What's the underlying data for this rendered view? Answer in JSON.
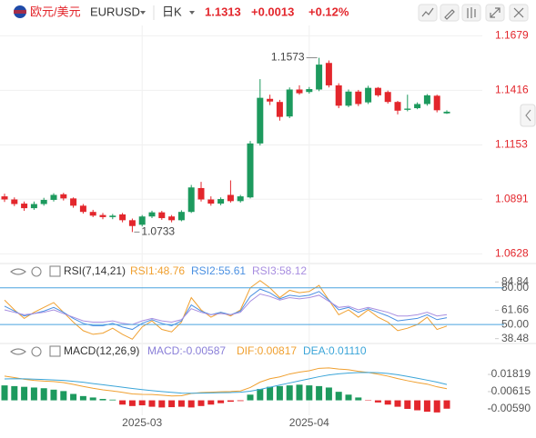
{
  "header": {
    "pair_name": "欧元/美元",
    "symbol": "EURUSD",
    "period": "日K",
    "price": "1.1313",
    "change": "+0.0013",
    "change_pct": "+0.12%"
  },
  "chart_data": [
    {
      "type": "candlestick",
      "categories": [
        null,
        null,
        null,
        null,
        null,
        null,
        null,
        null,
        null,
        null,
        null,
        null,
        null,
        null,
        "2025-03",
        null,
        null,
        null,
        null,
        null,
        null,
        null,
        null,
        null,
        null,
        null,
        null,
        null,
        null,
        null,
        null,
        "2025-04",
        null,
        null,
        null,
        null,
        null,
        null,
        null,
        null,
        null,
        null,
        null,
        null,
        null,
        null
      ],
      "open": [
        1.0905,
        1.089,
        1.087,
        1.0848,
        1.0868,
        1.0888,
        1.0915,
        1.0895,
        1.086,
        1.083,
        1.0815,
        1.0805,
        1.0818,
        1.079,
        1.0768,
        1.0808,
        1.0828,
        1.0808,
        1.079,
        1.083,
        1.0945,
        1.089,
        1.087,
        1.0912,
        1.0882,
        1.09,
        1.116,
        1.1375,
        1.136,
        1.129,
        1.142,
        1.1408,
        1.142,
        1.1548,
        1.144,
        1.1342,
        1.141,
        1.1358,
        1.1428,
        1.1408,
        1.136,
        1.1322,
        1.133,
        1.135,
        1.139,
        1.1305
      ],
      "high": [
        1.0918,
        1.09,
        1.088,
        1.088,
        1.0898,
        1.092,
        1.0922,
        1.09,
        1.0868,
        1.084,
        1.0825,
        1.082,
        1.0825,
        1.0798,
        1.0815,
        1.0836,
        1.0835,
        1.0815,
        1.0838,
        1.096,
        1.0975,
        1.0905,
        1.09,
        1.0982,
        1.0912,
        1.1172,
        1.147,
        1.1395,
        1.137,
        1.143,
        1.144,
        1.1432,
        1.1573,
        1.156,
        1.145,
        1.142,
        1.1418,
        1.1438,
        1.1432,
        1.1415,
        1.1365,
        1.1395,
        1.1358,
        1.1398,
        1.1395,
        1.132
      ],
      "low": [
        1.0878,
        1.0858,
        1.0835,
        1.084,
        1.086,
        1.088,
        1.0885,
        1.085,
        1.0822,
        1.0805,
        1.0795,
        1.0795,
        1.078,
        1.0733,
        1.076,
        1.08,
        1.0792,
        1.078,
        1.0785,
        1.0825,
        1.088,
        1.086,
        1.0862,
        1.0875,
        1.0875,
        1.0895,
        1.115,
        1.1345,
        1.127,
        1.1282,
        1.1395,
        1.14,
        1.1412,
        1.143,
        1.133,
        1.1335,
        1.134,
        1.135,
        1.1385,
        1.1352,
        1.13,
        1.1315,
        1.1325,
        1.1342,
        1.131,
        1.1302
      ],
      "close": [
        1.089,
        1.0868,
        1.0848,
        1.0868,
        1.0888,
        1.0912,
        1.0895,
        1.086,
        1.083,
        1.0812,
        1.0805,
        1.0812,
        1.079,
        1.0762,
        1.0808,
        1.0828,
        1.08,
        1.079,
        1.083,
        1.0948,
        1.089,
        1.087,
        1.0892,
        1.0882,
        1.0905,
        1.116,
        1.138,
        1.1362,
        1.1288,
        1.142,
        1.1402,
        1.1422,
        1.154,
        1.144,
        1.1342,
        1.141,
        1.135,
        1.1428,
        1.1392,
        1.136,
        1.1318,
        1.1328,
        1.135,
        1.1392,
        1.132,
        1.1313
      ],
      "up_color": "#1d9a5e",
      "down_color": "#e3262c",
      "ylim": [
        1.059,
        1.172
      ],
      "yticks": [
        1.0628,
        1.0891,
        1.1153,
        1.1416,
        1.1679
      ],
      "grid": true,
      "annotations": [
        {
          "label": "1.1573",
          "value": 1.1573
        },
        {
          "label": "1.0733",
          "value": 1.0733
        }
      ]
    },
    {
      "type": "line",
      "title": "RSI(7,14,21)",
      "series": [
        {
          "name": "RSI1:48.76",
          "color": "#f0a030",
          "values": [
            70,
            62,
            55,
            60,
            64,
            68,
            60,
            52,
            45,
            42,
            43,
            47,
            42,
            38,
            48,
            53,
            46,
            44,
            52,
            72,
            62,
            56,
            60,
            57,
            62,
            80,
            86,
            80,
            72,
            78,
            76,
            77,
            82,
            70,
            58,
            62,
            56,
            62,
            56,
            52,
            45,
            47,
            50,
            56,
            46,
            48.76
          ]
        },
        {
          "name": "RSI2:55.61",
          "color": "#4a90e2",
          "values": [
            65,
            61,
            57,
            59,
            61,
            64,
            60,
            55,
            51,
            49,
            49,
            51,
            48,
            46,
            51,
            54,
            51,
            49,
            53,
            66,
            61,
            58,
            60,
            58,
            61,
            73,
            79,
            76,
            71,
            74,
            73,
            74,
            77,
            70,
            62,
            64,
            60,
            63,
            60,
            57,
            53,
            54,
            55,
            58,
            54,
            55.61
          ]
        },
        {
          "name": "RSI3:58.12",
          "color": "#a88ee0",
          "values": [
            62,
            60,
            58,
            59,
            60,
            62,
            59,
            56,
            53,
            52,
            52,
            53,
            51,
            50,
            53,
            55,
            53,
            52,
            54,
            63,
            60,
            58,
            59,
            58,
            60,
            69,
            75,
            73,
            70,
            72,
            71,
            72,
            74,
            69,
            64,
            65,
            62,
            64,
            62,
            60,
            57,
            57,
            58,
            60,
            57,
            58.12
          ]
        }
      ],
      "ylim": [
        36,
        88
      ],
      "yticks": [
        84.84,
        61.66,
        38.48
      ],
      "reference_lines": [
        {
          "value": 80,
          "label": "80.00"
        },
        {
          "value": 50,
          "label": "50.00"
        }
      ],
      "reference_color": "#4aa3df"
    },
    {
      "type": "macd",
      "title": "MACD(12,26,9)",
      "histogram": {
        "name": "MACD:-0.00587",
        "name_color": "#8a7fd8",
        "up_color": "#1d9a5e",
        "down_color": "#e3262c",
        "values": [
          0.0105,
          0.01,
          0.0095,
          0.009,
          0.0085,
          0.0075,
          0.0065,
          0.0045,
          0.003,
          0.002,
          0.001,
          0.0005,
          -0.003,
          -0.004,
          -0.0035,
          -0.0045,
          -0.005,
          -0.0048,
          -0.0045,
          -0.005,
          -0.004,
          -0.003,
          -0.002,
          -0.001,
          -0.0005,
          0.004,
          0.008,
          0.0095,
          0.01,
          0.0105,
          0.011,
          0.0105,
          0.01,
          0.009,
          0.006,
          0.004,
          0.002,
          -0.0003,
          -0.0015,
          -0.003,
          -0.0045,
          -0.006,
          -0.007,
          -0.008,
          -0.0085,
          -0.00587
        ]
      },
      "series": [
        {
          "name": "DIF:0.00817",
          "color": "#f0a030",
          "values": [
            0.017,
            0.016,
            0.0148,
            0.014,
            0.0135,
            0.0132,
            0.0125,
            0.0112,
            0.0098,
            0.0085,
            0.0074,
            0.0066,
            0.0056,
            0.0045,
            0.0042,
            0.0041,
            0.0036,
            0.0031,
            0.0032,
            0.0048,
            0.0055,
            0.0057,
            0.006,
            0.0062,
            0.0066,
            0.009,
            0.0128,
            0.0152,
            0.0165,
            0.0185,
            0.0198,
            0.0208,
            0.0225,
            0.0228,
            0.022,
            0.0215,
            0.0204,
            0.0196,
            0.0184,
            0.017,
            0.0153,
            0.0138,
            0.0125,
            0.0114,
            0.0095,
            0.00817
          ]
        },
        {
          "name": "DEA:0.01110",
          "color": "#3ba5d8",
          "values": [
            0.015,
            0.0152,
            0.0151,
            0.0149,
            0.0146,
            0.0143,
            0.014,
            0.0134,
            0.0127,
            0.0118,
            0.011,
            0.0101,
            0.0092,
            0.0083,
            0.0075,
            0.0068,
            0.0062,
            0.0056,
            0.0051,
            0.005,
            0.0051,
            0.0052,
            0.0054,
            0.0055,
            0.0057,
            0.0064,
            0.0077,
            0.0092,
            0.0107,
            0.0122,
            0.0137,
            0.0151,
            0.0166,
            0.0178,
            0.0186,
            0.0192,
            0.0195,
            0.0196,
            0.0194,
            0.0189,
            0.018,
            0.0168,
            0.0155,
            0.0142,
            0.0128,
            0.0111
          ]
        }
      ],
      "ylim": [
        -0.0105,
        0.031
      ],
      "yticks": [
        0.01819,
        0.00615,
        {
          "value": -0.0059,
          "label": "-0.00590"
        }
      ]
    }
  ]
}
